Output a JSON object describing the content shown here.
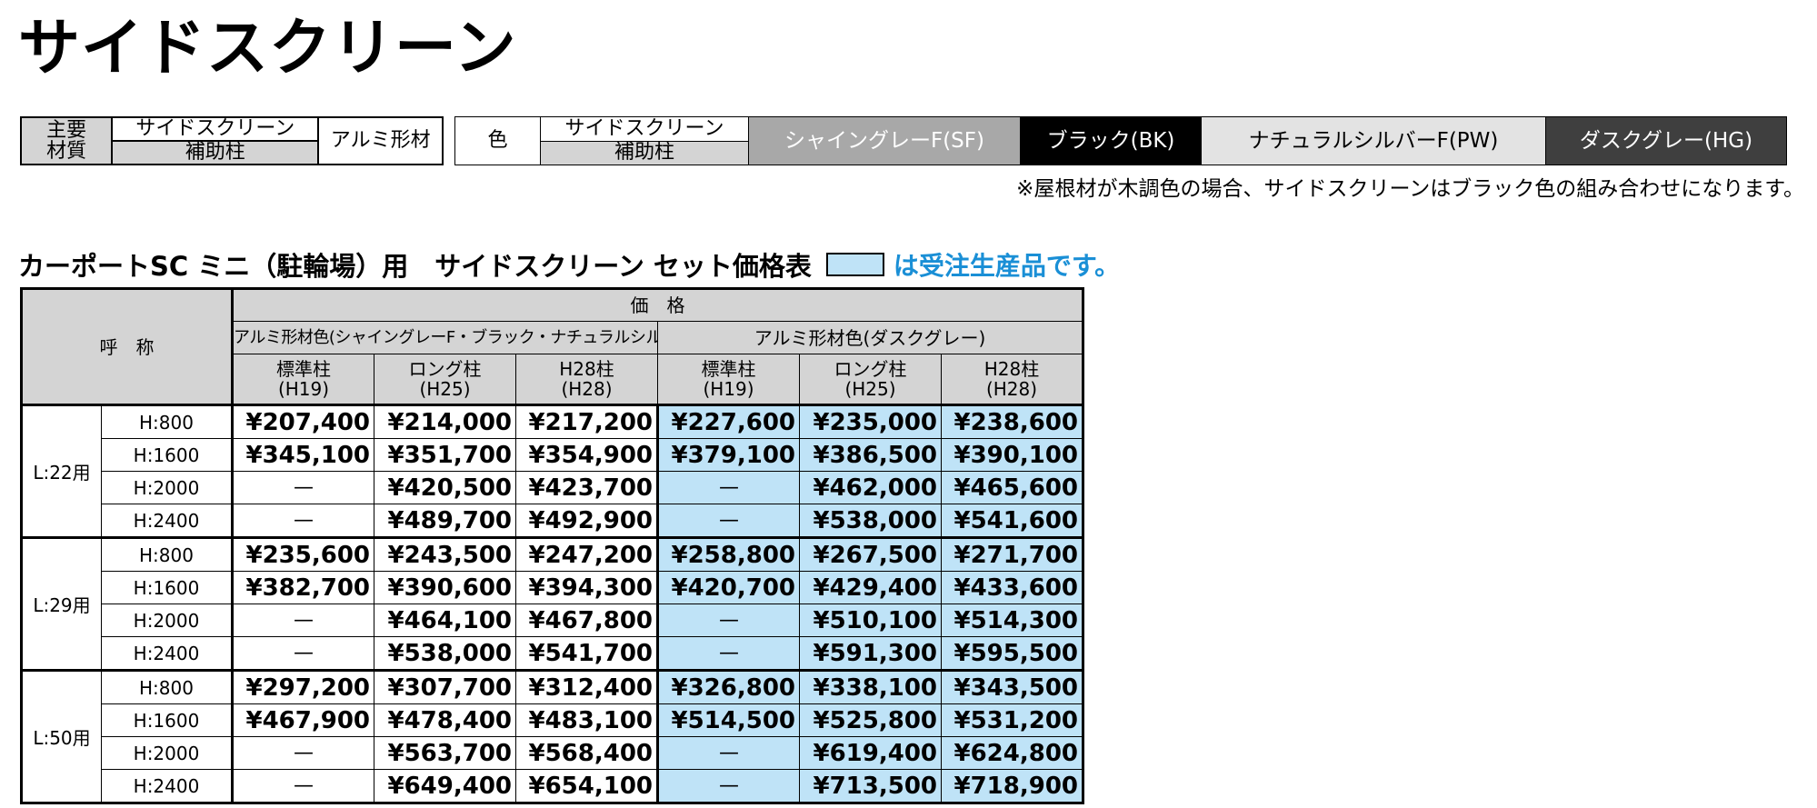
{
  "page_title": "サイドスクリーン",
  "material_table": {
    "header": "主要材質",
    "part_top": "サイドスクリーン",
    "part_bottom": "補助柱",
    "material": "アルミ形材"
  },
  "color_table": {
    "header": "色",
    "part_top": "サイドスクリーン",
    "part_bottom": "補助柱",
    "colors": [
      {
        "label": "シャイングレーF(SF)",
        "bg": "#a8a8a8",
        "fg": "#ffffff"
      },
      {
        "label": "ブラック(BK)",
        "bg": "#000000",
        "fg": "#ffffff"
      },
      {
        "label": "ナチュラルシルバーF(PW)",
        "bg": "#e3e3e3",
        "fg": "#000000"
      },
      {
        "label": "ダスクグレー(HG)",
        "bg": "#3f3f3f",
        "fg": "#ffffff"
      }
    ]
  },
  "note": "※屋根材が木調色の場合、サイドスクリーンはブラック色の組み合わせになります。",
  "section_title": "カーポートSC ミニ（駐輪場）用　サイドスクリーン セット価格表",
  "legend": {
    "text": "は受注生産品です。",
    "swatch_color": "#bfe3f7",
    "text_color": "#1a8fd6"
  },
  "price_table": {
    "name_header": "呼　称",
    "price_header": "価　格",
    "group1": "アルミ形材色(シャイングレーF・ブラック・ナチュラルシルバーF)",
    "group2": "アルミ形材色(ダスクグレー)",
    "columns": [
      {
        "name": "標準柱",
        "sub": "(H19)"
      },
      {
        "name": "ロング柱",
        "sub": "(H25)"
      },
      {
        "name": "H28柱",
        "sub": "(H28)"
      },
      {
        "name": "標準柱",
        "sub": "(H19)"
      },
      {
        "name": "ロング柱",
        "sub": "(H25)"
      },
      {
        "name": "H28柱",
        "sub": "(H28)"
      }
    ],
    "groups": [
      {
        "label": "L:22用",
        "rows": [
          {
            "h": "H:800",
            "v": [
              "¥207,400",
              "¥214,000",
              "¥217,200",
              "¥227,600",
              "¥235,000",
              "¥238,600"
            ]
          },
          {
            "h": "H:1600",
            "v": [
              "¥345,100",
              "¥351,700",
              "¥354,900",
              "¥379,100",
              "¥386,500",
              "¥390,100"
            ]
          },
          {
            "h": "H:2000",
            "v": [
              "—",
              "¥420,500",
              "¥423,700",
              "—",
              "¥462,000",
              "¥465,600"
            ]
          },
          {
            "h": "H:2400",
            "v": [
              "—",
              "¥489,700",
              "¥492,900",
              "—",
              "¥538,000",
              "¥541,600"
            ]
          }
        ]
      },
      {
        "label": "L:29用",
        "rows": [
          {
            "h": "H:800",
            "v": [
              "¥235,600",
              "¥243,500",
              "¥247,200",
              "¥258,800",
              "¥267,500",
              "¥271,700"
            ]
          },
          {
            "h": "H:1600",
            "v": [
              "¥382,700",
              "¥390,600",
              "¥394,300",
              "¥420,700",
              "¥429,400",
              "¥433,600"
            ]
          },
          {
            "h": "H:2000",
            "v": [
              "—",
              "¥464,100",
              "¥467,800",
              "—",
              "¥510,100",
              "¥514,300"
            ]
          },
          {
            "h": "H:2400",
            "v": [
              "—",
              "¥538,000",
              "¥541,700",
              "—",
              "¥591,300",
              "¥595,500"
            ]
          }
        ]
      },
      {
        "label": "L:50用",
        "rows": [
          {
            "h": "H:800",
            "v": [
              "¥297,200",
              "¥307,700",
              "¥312,400",
              "¥326,800",
              "¥338,100",
              "¥343,500"
            ]
          },
          {
            "h": "H:1600",
            "v": [
              "¥467,900",
              "¥478,400",
              "¥483,100",
              "¥514,500",
              "¥525,800",
              "¥531,200"
            ]
          },
          {
            "h": "H:2000",
            "v": [
              "—",
              "¥563,700",
              "¥568,400",
              "—",
              "¥619,400",
              "¥624,800"
            ]
          },
          {
            "h": "H:2400",
            "v": [
              "—",
              "¥649,400",
              "¥654,100",
              "—",
              "¥713,500",
              "¥718,900"
            ]
          }
        ]
      }
    ]
  }
}
